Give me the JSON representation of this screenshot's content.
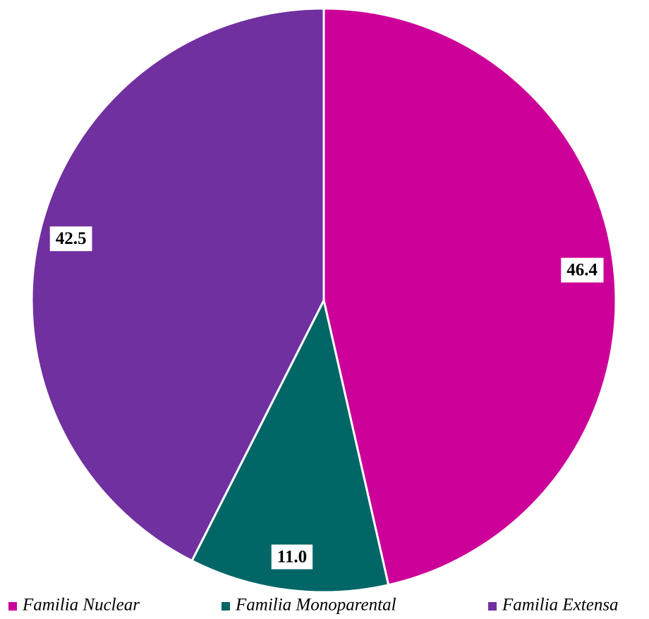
{
  "chart_data": {
    "type": "pie",
    "categories": [
      "Familia Nuclear",
      "Familia Monoparental",
      "Familia Extensa"
    ],
    "values": [
      46.4,
      11.0,
      42.5
    ],
    "value_labels": [
      "46.4",
      "11.0",
      "42.5"
    ],
    "colors": [
      "#cc0099",
      "#006666",
      "#7030a0"
    ],
    "legend": "bottom"
  }
}
